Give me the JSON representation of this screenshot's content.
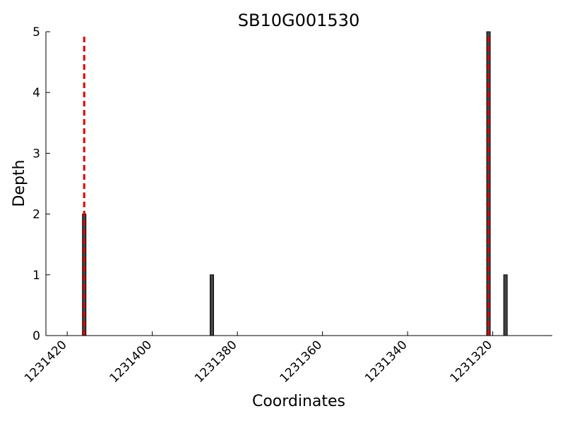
{
  "chart_data": {
    "type": "bar",
    "title": "SB10G001530",
    "x_label": "Coordinates",
    "y_label": "Depth",
    "x": [
      1231416,
      1231386,
      1231321,
      1231317
    ],
    "values": [
      2,
      1,
      5,
      1
    ],
    "color": "#444444",
    "vlines": [
      1231416,
      1231321
    ],
    "vline_color": "#e00000",
    "xlim": [
      1231425,
      1231306
    ],
    "xticks": [
      1231420,
      1231400,
      1231380,
      1231360,
      1231340,
      1231320
    ],
    "ylim": [
      0,
      5
    ],
    "yticks": [
      0,
      1,
      2,
      3,
      4,
      5
    ],
    "grid": false
  }
}
